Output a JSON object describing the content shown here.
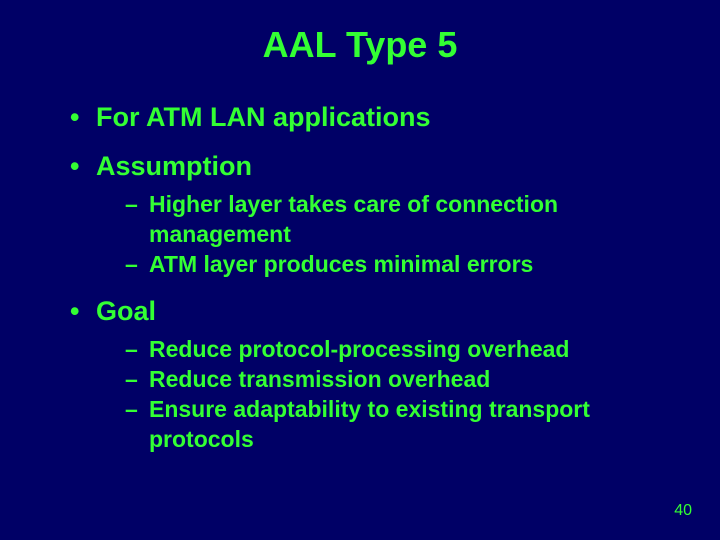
{
  "colors": {
    "background": "#000066",
    "text": "#33ff33",
    "pagenum": "#33ff33"
  },
  "title": "AAL Type 5",
  "bullets": {
    "b1": {
      "marker": "•",
      "text": "For ATM LAN applications"
    },
    "b2": {
      "marker": "•",
      "text": "Assumption",
      "sub": {
        "s1": {
          "marker": "–",
          "text": "Higher layer takes care of connection management"
        },
        "s2": {
          "marker": "–",
          "text": "ATM layer produces minimal errors"
        }
      }
    },
    "b3": {
      "marker": "•",
      "text": "Goal",
      "sub": {
        "s1": {
          "marker": "–",
          "text": "Reduce protocol-processing overhead"
        },
        "s2": {
          "marker": "–",
          "text": "Reduce transmission overhead"
        },
        "s3": {
          "marker": "–",
          "text": "Ensure adaptability to existing transport protocols"
        }
      }
    }
  },
  "page_number": "40"
}
